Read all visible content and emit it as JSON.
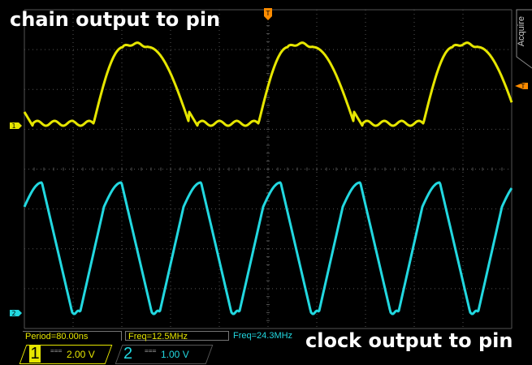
{
  "overlay": {
    "title_top": "chain output to pin",
    "title_bottom": "clock output to pin"
  },
  "side_menu": {
    "label": "Acquire"
  },
  "trigger": {
    "marker": "T",
    "level_marker": "T"
  },
  "channels": [
    {
      "number": "1",
      "marker": "1",
      "coupling": "===",
      "scale": "2.00 V",
      "color": "#e6e600"
    },
    {
      "number": "2",
      "marker": "2",
      "coupling": "===",
      "scale": "1.00 V",
      "color": "#22d8e0"
    }
  ],
  "measurements": {
    "period": "Period=80.00ns",
    "freq_ch1": "Freq=12.5MHz",
    "freq_ch2": "Freq=24.3MHz"
  },
  "colors": {
    "ch1": "#e6e600",
    "ch2": "#22d8e0",
    "trigger": "#ff8c00",
    "grid": "#555555"
  }
}
